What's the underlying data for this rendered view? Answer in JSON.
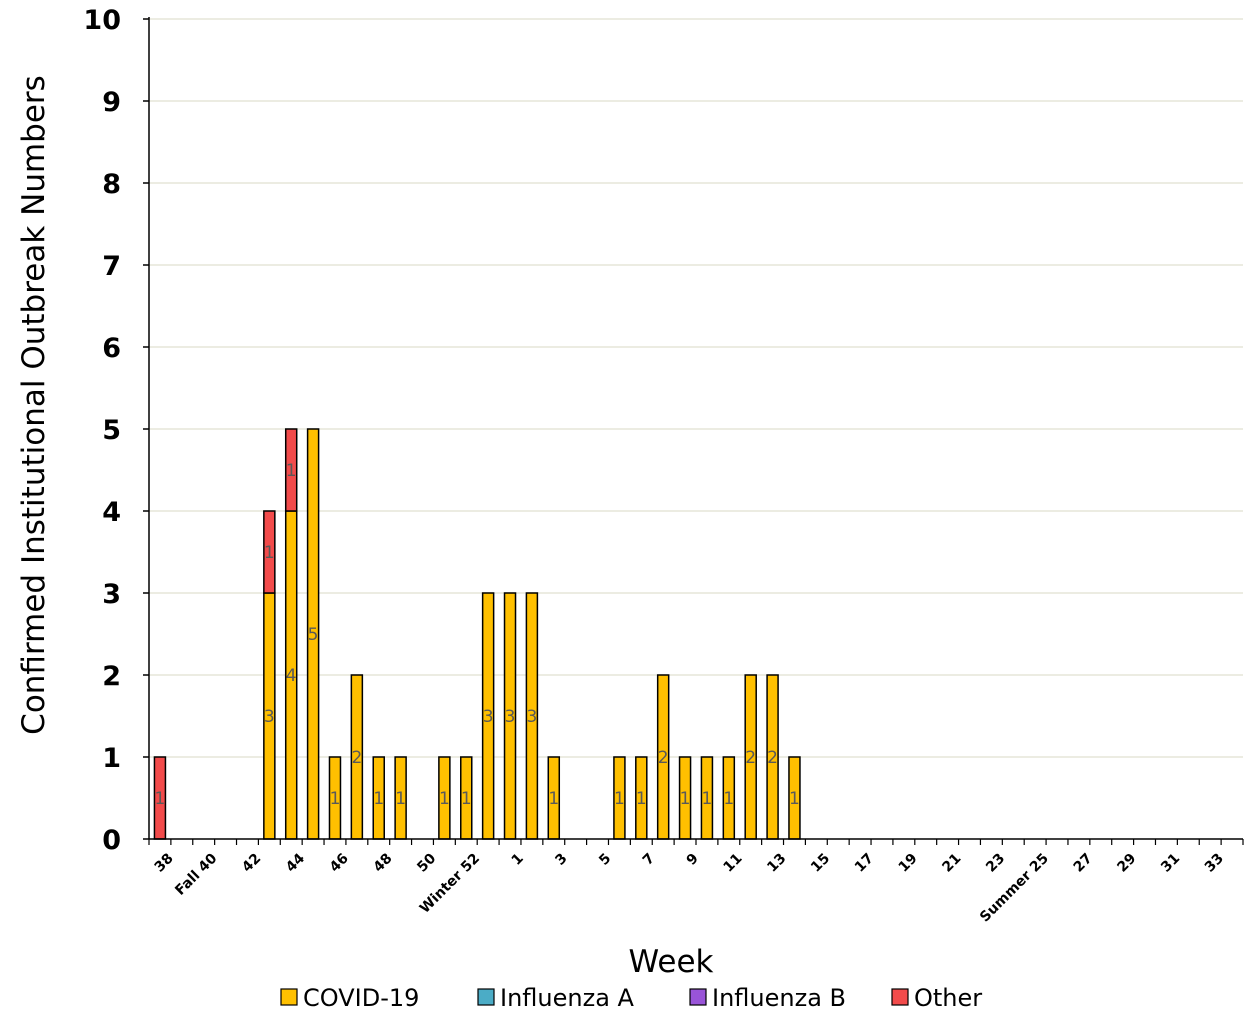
{
  "chart_data": {
    "type": "bar",
    "stacked": true,
    "title": "",
    "xlabel": "Week",
    "ylabel": "Confirmed Institutional Outbreak Numbers",
    "ylim": [
      0,
      10
    ],
    "yticks": [
      0,
      1,
      2,
      3,
      4,
      5,
      6,
      7,
      8,
      9,
      10
    ],
    "grid": true,
    "legend_position": "bottom",
    "categories": [
      "38",
      "39",
      "40",
      "41",
      "42",
      "43",
      "44",
      "45",
      "46",
      "47",
      "48",
      "49",
      "50",
      "51",
      "52",
      "1",
      "2",
      "3",
      "4",
      "5",
      "6",
      "7",
      "8",
      "9",
      "10",
      "11",
      "12",
      "13",
      "14",
      "15",
      "16",
      "17",
      "18",
      "19",
      "20",
      "21",
      "22",
      "23",
      "24",
      "25",
      "26",
      "27",
      "28",
      "29",
      "30",
      "31",
      "32",
      "33",
      "34",
      "35"
    ],
    "tick_labels": [
      "38",
      "Fall 40",
      "42",
      "44",
      "46",
      "48",
      "50",
      "Winter 52",
      "1",
      "3",
      "5",
      "7",
      "9",
      "11",
      "13",
      "15",
      "17",
      "19",
      "21",
      "23",
      "Summer 25",
      "27",
      "29",
      "31",
      "33"
    ],
    "series": [
      {
        "name": "COVID-19",
        "color": "#FFC000",
        "values": [
          0,
          0,
          0,
          0,
          0,
          3,
          4,
          5,
          1,
          2,
          1,
          1,
          0,
          1,
          1,
          3,
          3,
          3,
          1,
          0,
          0,
          1,
          1,
          2,
          1,
          1,
          1,
          2,
          2,
          1,
          0,
          0,
          0,
          0,
          0,
          0,
          0,
          0,
          0,
          0,
          0,
          0,
          0,
          0,
          0,
          0,
          0,
          0,
          0,
          0
        ]
      },
      {
        "name": "Influenza A",
        "color": "#4BACC6",
        "values": [
          0,
          0,
          0,
          0,
          0,
          0,
          0,
          0,
          0,
          0,
          0,
          0,
          0,
          0,
          0,
          0,
          0,
          0,
          0,
          0,
          0,
          0,
          0,
          0,
          0,
          0,
          0,
          0,
          0,
          0,
          0,
          0,
          0,
          0,
          0,
          0,
          0,
          0,
          0,
          0,
          0,
          0,
          0,
          0,
          0,
          0,
          0,
          0,
          0,
          0
        ]
      },
      {
        "name": "Influenza B",
        "color": "#9954D8",
        "values": [
          0,
          0,
          0,
          0,
          0,
          0,
          0,
          0,
          0,
          0,
          0,
          0,
          0,
          0,
          0,
          0,
          0,
          0,
          0,
          0,
          0,
          0,
          0,
          0,
          0,
          0,
          0,
          0,
          0,
          0,
          0,
          0,
          0,
          0,
          0,
          0,
          0,
          0,
          0,
          0,
          0,
          0,
          0,
          0,
          0,
          0,
          0,
          0,
          0,
          0
        ]
      },
      {
        "name": "Other",
        "color": "#F24B4B",
        "values": [
          1,
          0,
          0,
          0,
          0,
          1,
          1,
          0,
          0,
          0,
          0,
          0,
          0,
          0,
          0,
          0,
          0,
          0,
          0,
          0,
          0,
          0,
          0,
          0,
          0,
          0,
          0,
          0,
          0,
          0,
          0,
          0,
          0,
          0,
          0,
          0,
          0,
          0,
          0,
          0,
          0,
          0,
          0,
          0,
          0,
          0,
          0,
          0,
          0,
          0
        ]
      }
    ]
  }
}
